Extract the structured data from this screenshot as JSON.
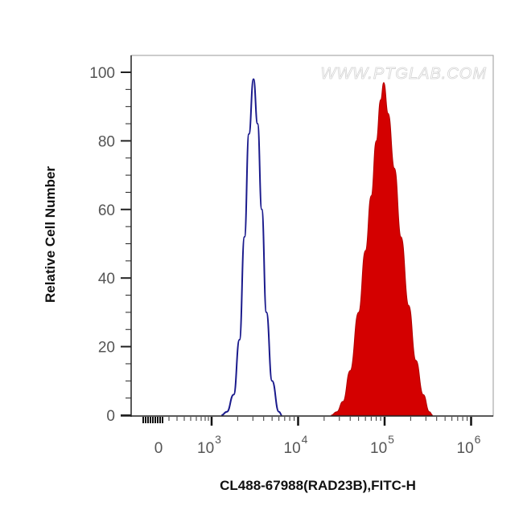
{
  "chart_data": {
    "type": "area",
    "title": "",
    "xlabel": "CL488-67988(RAD23B),FITC-H",
    "ylabel": "Relative Cell Number",
    "watermark": "WWW.PTGLAB.COM",
    "x_scale": "biexponential (log)",
    "xlim": [
      0,
      1000000
    ],
    "ylim": [
      0,
      100
    ],
    "grid": false,
    "legend": "none",
    "x_ticks": [
      {
        "label": "0",
        "base": "",
        "exp": "",
        "value": 0
      },
      {
        "label": "10^3",
        "base": "10",
        "exp": "3",
        "value": 1000
      },
      {
        "label": "10^4",
        "base": "10",
        "exp": "4",
        "value": 10000
      },
      {
        "label": "10^5",
        "base": "10",
        "exp": "5",
        "value": 100000
      },
      {
        "label": "10^6",
        "base": "10",
        "exp": "6",
        "value": 1000000
      }
    ],
    "y_ticks": [
      "0",
      "20",
      "40",
      "60",
      "80",
      "100"
    ],
    "series": [
      {
        "style": "outline",
        "color": "#1a1a8c",
        "points": [
          [
            1300,
            0
          ],
          [
            1500,
            1
          ],
          [
            1800,
            6
          ],
          [
            2100,
            22
          ],
          [
            2400,
            52
          ],
          [
            2700,
            82
          ],
          [
            3050,
            98
          ],
          [
            3400,
            85
          ],
          [
            3800,
            60
          ],
          [
            4300,
            30
          ],
          [
            5000,
            10
          ],
          [
            6000,
            1
          ],
          [
            6500,
            0
          ]
        ]
      },
      {
        "style": "filled",
        "color": "#d40000",
        "points": [
          [
            24000,
            0
          ],
          [
            28000,
            1
          ],
          [
            33000,
            4
          ],
          [
            40000,
            13
          ],
          [
            50000,
            30
          ],
          [
            60000,
            48
          ],
          [
            70000,
            64
          ],
          [
            80000,
            80
          ],
          [
            90000,
            92
          ],
          [
            97700,
            97
          ],
          [
            110000,
            88
          ],
          [
            130000,
            72
          ],
          [
            155000,
            52
          ],
          [
            190000,
            32
          ],
          [
            230000,
            16
          ],
          [
            280000,
            6
          ],
          [
            330000,
            1
          ],
          [
            360000,
            0
          ]
        ]
      }
    ]
  }
}
